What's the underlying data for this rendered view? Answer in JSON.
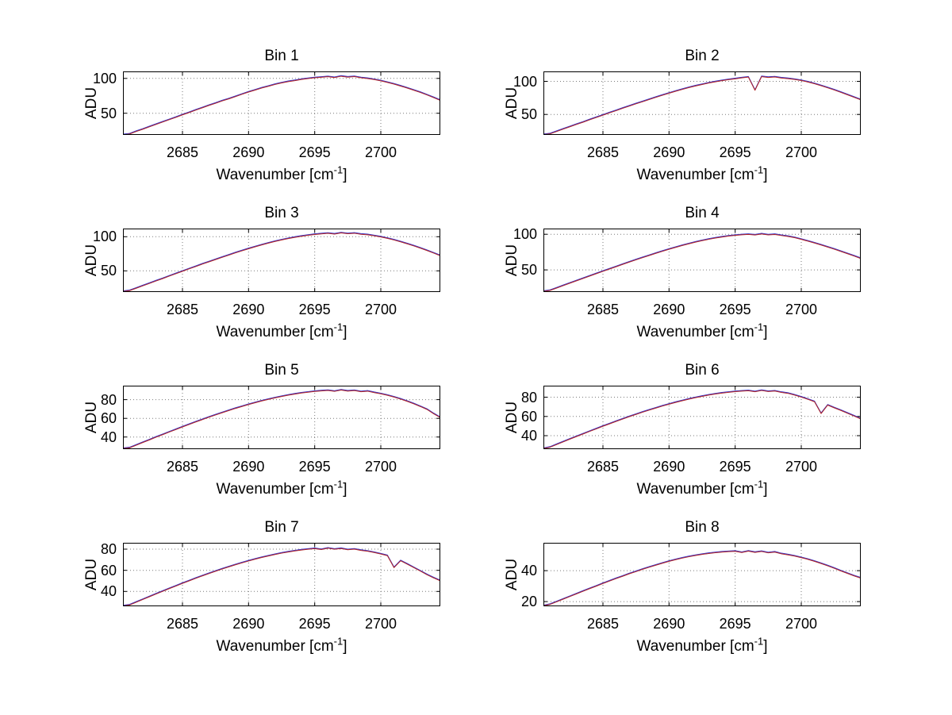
{
  "figure": {
    "background": "#ffffff",
    "axis_color": "#000000",
    "grid_color": "#7a7a7a",
    "line_color": "#b22222",
    "line_color_secondary": "#3333cc"
  },
  "chart_data": {
    "type": "line",
    "layout": "4 rows x 2 columns subplot grid",
    "grid": "on",
    "xlabel": {
      "prefix": "Wavenumber [cm",
      "sup": "-1",
      "suffix": "]"
    },
    "ylabel": "ADU",
    "xlim": [
      2680.5,
      2704.5
    ],
    "xticks": [
      2685,
      2690,
      2695,
      2700
    ],
    "x_start": 2680.5,
    "x_step": 0.5,
    "subplots": [
      {
        "title": "Bin 1",
        "ylim": [
          19,
          110
        ],
        "yticks": [
          50,
          100
        ],
        "y": [
          19.2,
          20.3,
          23.9,
          27.1,
          30.6,
          34.0,
          37.4,
          40.8,
          44.1,
          47.7,
          51.0,
          54.5,
          57.8,
          61.2,
          64.3,
          67.7,
          70.6,
          73.8,
          77.2,
          80.4,
          83.3,
          86.2,
          88.7,
          91.3,
          93.5,
          95.4,
          96.8,
          98.5,
          99.7,
          100.9,
          101.6,
          102.4,
          101.2,
          103.1,
          101.8,
          102.6,
          100.9,
          99.8,
          98.3,
          96.5,
          94.2,
          91.8,
          89.0,
          86.1,
          83.0,
          79.8,
          76.2,
          72.4,
          68.5
        ]
      },
      {
        "title": "Bin 2",
        "ylim": [
          19,
          115
        ],
        "yticks": [
          50,
          100
        ],
        "y": [
          19.4,
          20.6,
          24.2,
          27.8,
          31.3,
          34.8,
          38.2,
          41.9,
          45.3,
          48.8,
          52.4,
          55.7,
          59.3,
          62.6,
          66.0,
          69.2,
          72.5,
          75.8,
          78.9,
          82.0,
          85.0,
          87.8,
          90.5,
          93.0,
          95.2,
          97.4,
          99.3,
          101.0,
          102.5,
          103.8,
          105.2,
          106.4,
          86.5,
          107.1,
          105.9,
          106.6,
          105.0,
          104.1,
          102.8,
          101.2,
          99.0,
          96.4,
          93.4,
          90.2,
          86.9,
          83.3,
          79.6,
          75.8,
          72.0
        ]
      },
      {
        "title": "Bin 3",
        "ylim": [
          19,
          112
        ],
        "yticks": [
          50,
          100
        ],
        "y": [
          19.8,
          21.0,
          24.5,
          28.1,
          31.6,
          35.2,
          38.6,
          42.3,
          45.8,
          49.4,
          52.9,
          56.3,
          59.9,
          63.2,
          66.5,
          69.8,
          73.0,
          76.3,
          79.4,
          82.4,
          85.3,
          88.0,
          90.6,
          93.1,
          95.3,
          97.3,
          99.1,
          100.7,
          102.1,
          103.3,
          104.2,
          105.0,
          103.9,
          105.6,
          104.4,
          105.1,
          103.6,
          102.9,
          101.4,
          99.7,
          97.6,
          95.2,
          92.5,
          89.6,
          86.5,
          83.2,
          79.7,
          76.0,
          72.2
        ]
      },
      {
        "title": "Bin 4",
        "ylim": [
          19,
          108
        ],
        "yticks": [
          50,
          100
        ],
        "y": [
          19.9,
          21.2,
          24.6,
          28.0,
          31.4,
          34.7,
          38.0,
          41.4,
          44.7,
          48.0,
          51.3,
          54.5,
          57.8,
          61.0,
          64.1,
          67.2,
          70.2,
          73.2,
          76.1,
          78.9,
          81.6,
          84.2,
          86.6,
          88.9,
          91.0,
          92.9,
          94.6,
          96.1,
          97.4,
          98.4,
          99.2,
          99.8,
          98.9,
          100.4,
          99.1,
          99.7,
          98.2,
          96.9,
          95.2,
          92.8,
          90.3,
          87.7,
          84.9,
          82.0,
          79.0,
          75.9,
          72.7,
          69.4,
          66.0
        ]
      },
      {
        "title": "Bin 5",
        "ylim": [
          27,
          95
        ],
        "yticks": [
          40,
          60,
          80
        ],
        "y": [
          27.6,
          28.4,
          31.2,
          34.1,
          36.9,
          39.8,
          42.5,
          45.3,
          48.0,
          50.8,
          53.4,
          56.1,
          58.6,
          61.2,
          63.6,
          66.0,
          68.3,
          70.6,
          72.7,
          74.8,
          76.7,
          78.6,
          80.3,
          81.9,
          83.4,
          84.8,
          86.0,
          87.1,
          88.0,
          88.8,
          89.4,
          89.9,
          88.9,
          90.3,
          89.2,
          89.8,
          88.5,
          89.1,
          87.6,
          86.3,
          84.7,
          82.8,
          80.6,
          78.2,
          75.5,
          72.6,
          69.5,
          64.9,
          60.8
        ]
      },
      {
        "title": "Bin 6",
        "ylim": [
          26,
          92
        ],
        "yticks": [
          40,
          60,
          80
        ],
        "y": [
          26.6,
          28.0,
          30.8,
          33.6,
          36.4,
          39.1,
          41.8,
          44.5,
          47.1,
          49.8,
          52.3,
          54.9,
          57.3,
          59.8,
          62.1,
          64.4,
          66.6,
          68.7,
          70.8,
          72.7,
          74.6,
          76.3,
          78.0,
          79.5,
          80.9,
          82.2,
          83.3,
          84.3,
          85.1,
          85.8,
          86.3,
          86.7,
          85.7,
          87.0,
          85.9,
          86.4,
          85.0,
          84.0,
          82.2,
          80.1,
          77.8,
          75.3,
          63.0,
          71.8,
          68.9,
          66.2,
          63.3,
          60.4,
          57.4
        ]
      },
      {
        "title": "Bin 7",
        "ylim": [
          26,
          86
        ],
        "yticks": [
          40,
          60,
          80
        ],
        "y": [
          26.3,
          27.2,
          29.8,
          32.4,
          35.0,
          37.6,
          40.1,
          42.7,
          45.1,
          47.6,
          50.0,
          52.4,
          54.7,
          56.9,
          59.1,
          61.2,
          63.2,
          65.2,
          67.0,
          68.8,
          70.5,
          72.1,
          73.5,
          74.9,
          76.2,
          77.3,
          78.3,
          79.2,
          79.9,
          80.5,
          79.6,
          80.9,
          79.9,
          80.6,
          79.4,
          80.0,
          78.8,
          78.0,
          76.8,
          75.4,
          73.8,
          62.5,
          69.0,
          65.8,
          62.5,
          59.2,
          55.8,
          52.8,
          50.1
        ]
      },
      {
        "title": "Bin 8",
        "ylim": [
          17,
          58
        ],
        "yticks": [
          20,
          40
        ],
        "y": [
          17.3,
          18.2,
          19.9,
          21.6,
          23.3,
          25.0,
          26.7,
          28.4,
          30.0,
          31.7,
          33.3,
          34.9,
          36.4,
          38.0,
          39.4,
          40.9,
          42.2,
          43.5,
          44.8,
          46.0,
          47.1,
          48.1,
          49.0,
          49.8,
          50.5,
          51.1,
          51.6,
          52.0,
          52.3,
          52.5,
          51.7,
          52.6,
          51.8,
          52.4,
          51.5,
          52.0,
          50.9,
          50.2,
          49.4,
          48.4,
          47.3,
          46.0,
          44.6,
          43.1,
          41.5,
          39.8,
          38.2,
          36.6,
          35.2
        ]
      }
    ]
  }
}
